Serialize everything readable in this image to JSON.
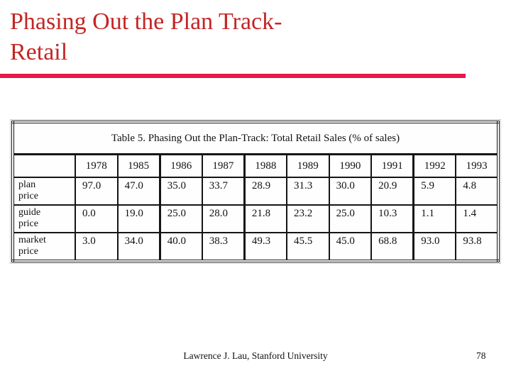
{
  "theme": {
    "title_color": "#c42525",
    "rule_color": "#e5174b",
    "background": "#ffffff",
    "table_ink": "#111111"
  },
  "header": {
    "title_line1": "Phasing Out the Plan Track-",
    "title_line2": "Retail"
  },
  "table": {
    "title": "Table 5.  Phasing Out the Plan-Track: Total Retail Sales (% of sales)",
    "columns": [
      "1978",
      "1985",
      "1986",
      "1987",
      "1988",
      "1989",
      "1990",
      "1991",
      "1992",
      "1993"
    ],
    "rows": [
      {
        "label": "plan price",
        "values": [
          "97.0",
          "47.0",
          "35.0",
          "33.7",
          "28.9",
          "31.3",
          "30.0",
          "20.9",
          "5.9",
          "4.8"
        ]
      },
      {
        "label": "guide price",
        "values": [
          "0.0",
          "19.0",
          "25.0",
          "28.0",
          "21.8",
          "23.2",
          "25.0",
          "10.3",
          "1.1",
          "1.4"
        ]
      },
      {
        "label": "market price",
        "values": [
          "3.0",
          "34.0",
          "40.0",
          "38.3",
          "49.3",
          "45.5",
          "45.0",
          "68.8",
          "93.0",
          "93.8"
        ]
      }
    ]
  },
  "footer": {
    "credit": "Lawrence J. Lau, Stanford University",
    "page_number": "78"
  }
}
